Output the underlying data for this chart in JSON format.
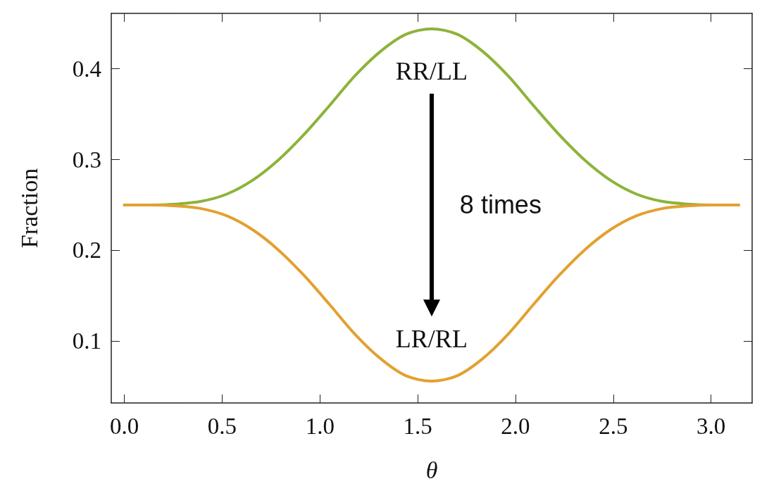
{
  "chart_data": {
    "type": "line",
    "xlabel": "θ",
    "ylabel": "Fraction",
    "x": [
      0,
      0.131,
      0.262,
      0.393,
      0.524,
      0.654,
      0.785,
      0.916,
      1.047,
      1.178,
      1.309,
      1.44,
      1.571,
      1.702,
      1.833,
      1.963,
      2.094,
      2.225,
      2.356,
      2.487,
      2.618,
      2.749,
      2.88,
      3.011,
      3.142
    ],
    "series": [
      {
        "name": "RR/LL",
        "color": "#8db33a",
        "values": [
          0.25,
          0.25,
          0.251,
          0.254,
          0.262,
          0.277,
          0.299,
          0.327,
          0.359,
          0.392,
          0.419,
          0.438,
          0.444,
          0.438,
          0.419,
          0.392,
          0.359,
          0.327,
          0.299,
          0.277,
          0.262,
          0.254,
          0.251,
          0.25,
          0.25
        ]
      },
      {
        "name": "LR/RL",
        "color": "#e3a030",
        "values": [
          0.25,
          0.25,
          0.249,
          0.246,
          0.238,
          0.223,
          0.201,
          0.173,
          0.141,
          0.108,
          0.081,
          0.062,
          0.056,
          0.062,
          0.081,
          0.108,
          0.141,
          0.173,
          0.201,
          0.223,
          0.238,
          0.246,
          0.249,
          0.25,
          0.25
        ]
      }
    ],
    "annotations": [
      "8 times"
    ],
    "xlim": [
      -0.067,
      3.21
    ],
    "xticks": [
      {
        "value": 0,
        "label": "0.0"
      },
      {
        "value": 0.5,
        "label": "0.5"
      },
      {
        "value": 1,
        "label": "1.0"
      },
      {
        "value": 1.5,
        "label": "1.5"
      },
      {
        "value": 2,
        "label": "2.0"
      },
      {
        "value": 2.5,
        "label": "2.5"
      },
      {
        "value": 3,
        "label": "3.0"
      }
    ],
    "ylim": [
      0.032,
      0.461
    ],
    "yticks": [
      0.1,
      0.2,
      0.3,
      0.4
    ],
    "grid": false,
    "marker": "none",
    "line_style": "solid"
  }
}
